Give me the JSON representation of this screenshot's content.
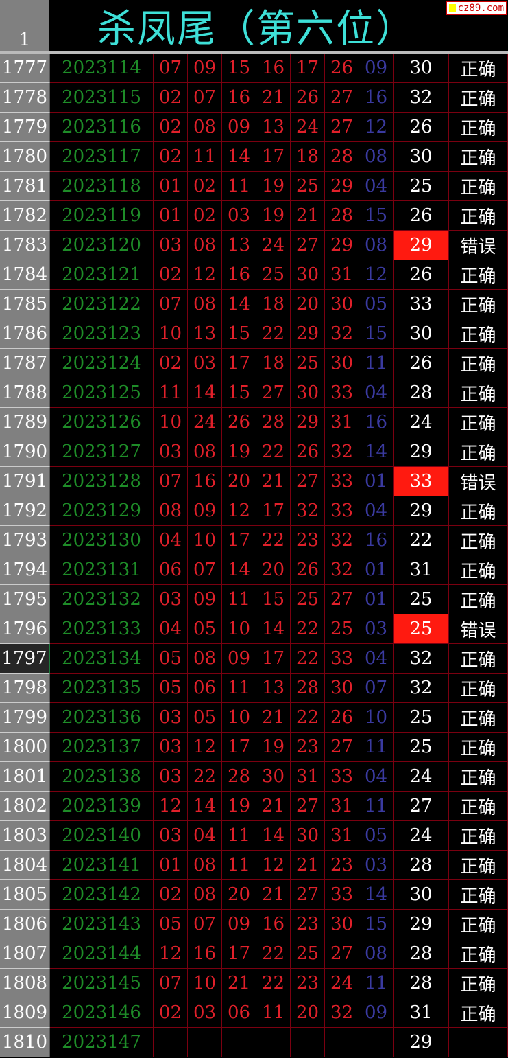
{
  "header": {
    "row_number": "1",
    "title": "杀凤尾（第六位）",
    "logo": "cz89.com"
  },
  "selected_row": "1797",
  "colors": {
    "period": "#1e8c28",
    "red_ball": "#e0202a",
    "blue_ball": "#3a3aa0",
    "title": "#3ee0d8",
    "error_fill": "#ff1a10"
  },
  "columns": [
    "row_number",
    "period",
    "red1",
    "red2",
    "red3",
    "red4",
    "red5",
    "red6",
    "blue",
    "kill_value",
    "result"
  ],
  "rows": [
    {
      "rn": "1777",
      "period": "2023114",
      "red": [
        "07",
        "09",
        "15",
        "16",
        "17",
        "26"
      ],
      "blue": "09",
      "value": "30",
      "result": "正确"
    },
    {
      "rn": "1778",
      "period": "2023115",
      "red": [
        "02",
        "07",
        "16",
        "21",
        "26",
        "27"
      ],
      "blue": "16",
      "value": "32",
      "result": "正确"
    },
    {
      "rn": "1779",
      "period": "2023116",
      "red": [
        "02",
        "08",
        "09",
        "13",
        "24",
        "27"
      ],
      "blue": "12",
      "value": "26",
      "result": "正确"
    },
    {
      "rn": "1780",
      "period": "2023117",
      "red": [
        "02",
        "11",
        "14",
        "17",
        "18",
        "28"
      ],
      "blue": "08",
      "value": "30",
      "result": "正确"
    },
    {
      "rn": "1781",
      "period": "2023118",
      "red": [
        "01",
        "02",
        "11",
        "19",
        "25",
        "29"
      ],
      "blue": "04",
      "value": "25",
      "result": "正确"
    },
    {
      "rn": "1782",
      "period": "2023119",
      "red": [
        "01",
        "02",
        "03",
        "19",
        "21",
        "28"
      ],
      "blue": "15",
      "value": "26",
      "result": "正确"
    },
    {
      "rn": "1783",
      "period": "2023120",
      "red": [
        "03",
        "08",
        "13",
        "24",
        "27",
        "29"
      ],
      "blue": "08",
      "value": "29",
      "result": "错误",
      "error": true
    },
    {
      "rn": "1784",
      "period": "2023121",
      "red": [
        "02",
        "12",
        "16",
        "25",
        "30",
        "31"
      ],
      "blue": "12",
      "value": "26",
      "result": "正确"
    },
    {
      "rn": "1785",
      "period": "2023122",
      "red": [
        "07",
        "08",
        "14",
        "18",
        "20",
        "30"
      ],
      "blue": "05",
      "value": "33",
      "result": "正确"
    },
    {
      "rn": "1786",
      "period": "2023123",
      "red": [
        "10",
        "13",
        "15",
        "22",
        "29",
        "32"
      ],
      "blue": "15",
      "value": "30",
      "result": "正确"
    },
    {
      "rn": "1787",
      "period": "2023124",
      "red": [
        "02",
        "03",
        "17",
        "18",
        "25",
        "30"
      ],
      "blue": "11",
      "value": "26",
      "result": "正确"
    },
    {
      "rn": "1788",
      "period": "2023125",
      "red": [
        "11",
        "14",
        "15",
        "27",
        "30",
        "33"
      ],
      "blue": "04",
      "value": "28",
      "result": "正确"
    },
    {
      "rn": "1789",
      "period": "2023126",
      "red": [
        "10",
        "24",
        "26",
        "28",
        "29",
        "31"
      ],
      "blue": "16",
      "value": "24",
      "result": "正确"
    },
    {
      "rn": "1790",
      "period": "2023127",
      "red": [
        "03",
        "08",
        "19",
        "22",
        "26",
        "32"
      ],
      "blue": "14",
      "value": "29",
      "result": "正确"
    },
    {
      "rn": "1791",
      "period": "2023128",
      "red": [
        "07",
        "16",
        "20",
        "21",
        "27",
        "33"
      ],
      "blue": "01",
      "value": "33",
      "result": "错误",
      "error": true
    },
    {
      "rn": "1792",
      "period": "2023129",
      "red": [
        "08",
        "09",
        "12",
        "17",
        "32",
        "33"
      ],
      "blue": "04",
      "value": "29",
      "result": "正确"
    },
    {
      "rn": "1793",
      "period": "2023130",
      "red": [
        "04",
        "10",
        "17",
        "22",
        "23",
        "32"
      ],
      "blue": "16",
      "value": "22",
      "result": "正确"
    },
    {
      "rn": "1794",
      "period": "2023131",
      "red": [
        "06",
        "07",
        "14",
        "20",
        "26",
        "32"
      ],
      "blue": "01",
      "value": "31",
      "result": "正确"
    },
    {
      "rn": "1795",
      "period": "2023132",
      "red": [
        "03",
        "09",
        "11",
        "15",
        "25",
        "27"
      ],
      "blue": "01",
      "value": "25",
      "result": "正确"
    },
    {
      "rn": "1796",
      "period": "2023133",
      "red": [
        "04",
        "05",
        "10",
        "14",
        "22",
        "25"
      ],
      "blue": "03",
      "value": "25",
      "result": "错误",
      "error": true
    },
    {
      "rn": "1797",
      "period": "2023134",
      "red": [
        "05",
        "08",
        "09",
        "17",
        "22",
        "33"
      ],
      "blue": "04",
      "value": "32",
      "result": "正确"
    },
    {
      "rn": "1798",
      "period": "2023135",
      "red": [
        "05",
        "06",
        "11",
        "13",
        "28",
        "30"
      ],
      "blue": "07",
      "value": "32",
      "result": "正确"
    },
    {
      "rn": "1799",
      "period": "2023136",
      "red": [
        "03",
        "05",
        "10",
        "21",
        "22",
        "26"
      ],
      "blue": "10",
      "value": "25",
      "result": "正确"
    },
    {
      "rn": "1800",
      "period": "2023137",
      "red": [
        "03",
        "12",
        "17",
        "19",
        "23",
        "27"
      ],
      "blue": "11",
      "value": "25",
      "result": "正确"
    },
    {
      "rn": "1801",
      "period": "2023138",
      "red": [
        "03",
        "22",
        "28",
        "30",
        "31",
        "33"
      ],
      "blue": "04",
      "value": "24",
      "result": "正确"
    },
    {
      "rn": "1802",
      "period": "2023139",
      "red": [
        "12",
        "14",
        "19",
        "21",
        "27",
        "31"
      ],
      "blue": "11",
      "value": "27",
      "result": "正确"
    },
    {
      "rn": "1803",
      "period": "2023140",
      "red": [
        "03",
        "04",
        "11",
        "14",
        "30",
        "31"
      ],
      "blue": "05",
      "value": "24",
      "result": "正确"
    },
    {
      "rn": "1804",
      "period": "2023141",
      "red": [
        "01",
        "08",
        "11",
        "12",
        "21",
        "23"
      ],
      "blue": "03",
      "value": "28",
      "result": "正确"
    },
    {
      "rn": "1805",
      "period": "2023142",
      "red": [
        "02",
        "08",
        "20",
        "21",
        "27",
        "33"
      ],
      "blue": "14",
      "value": "30",
      "result": "正确"
    },
    {
      "rn": "1806",
      "period": "2023143",
      "red": [
        "05",
        "07",
        "09",
        "16",
        "23",
        "30"
      ],
      "blue": "15",
      "value": "29",
      "result": "正确"
    },
    {
      "rn": "1807",
      "period": "2023144",
      "red": [
        "12",
        "16",
        "17",
        "22",
        "25",
        "27"
      ],
      "blue": "08",
      "value": "28",
      "result": "正确"
    },
    {
      "rn": "1808",
      "period": "2023145",
      "red": [
        "07",
        "10",
        "21",
        "22",
        "23",
        "24"
      ],
      "blue": "11",
      "value": "28",
      "result": "正确"
    },
    {
      "rn": "1809",
      "period": "2023146",
      "red": [
        "02",
        "03",
        "06",
        "11",
        "20",
        "32"
      ],
      "blue": "09",
      "value": "31",
      "result": "正确"
    },
    {
      "rn": "1810",
      "period": "2023147",
      "red": [
        "",
        "",
        "",
        "",
        "",
        ""
      ],
      "blue": "",
      "value": "29",
      "result": ""
    }
  ]
}
